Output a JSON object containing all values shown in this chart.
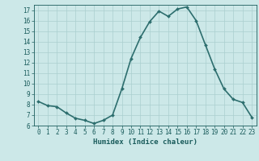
{
  "x": [
    0,
    1,
    2,
    3,
    4,
    5,
    6,
    7,
    8,
    9,
    10,
    11,
    12,
    13,
    14,
    15,
    16,
    17,
    18,
    19,
    20,
    21,
    22,
    23
  ],
  "y": [
    8.3,
    7.9,
    7.8,
    7.2,
    6.7,
    6.5,
    6.2,
    6.5,
    7.0,
    9.5,
    12.4,
    14.4,
    15.9,
    16.9,
    16.4,
    17.1,
    17.3,
    16.0,
    13.7,
    11.4,
    9.5,
    8.5,
    8.2,
    6.8
  ],
  "line_color": "#2d6e6e",
  "marker": "D",
  "marker_size": 2.0,
  "bg_color": "#cce8e8",
  "grid_color": "#aacfcf",
  "xlabel": "Humidex (Indice chaleur)",
  "ylim": [
    6,
    17.5
  ],
  "xlim": [
    -0.5,
    23.5
  ],
  "yticks": [
    6,
    7,
    8,
    9,
    10,
    11,
    12,
    13,
    14,
    15,
    16,
    17
  ],
  "xticks": [
    0,
    1,
    2,
    3,
    4,
    5,
    6,
    7,
    8,
    9,
    10,
    11,
    12,
    13,
    14,
    15,
    16,
    17,
    18,
    19,
    20,
    21,
    22,
    23
  ],
  "tick_color": "#1a5c5c",
  "label_fontsize": 6.5,
  "tick_fontsize": 5.5,
  "line_width": 1.2
}
